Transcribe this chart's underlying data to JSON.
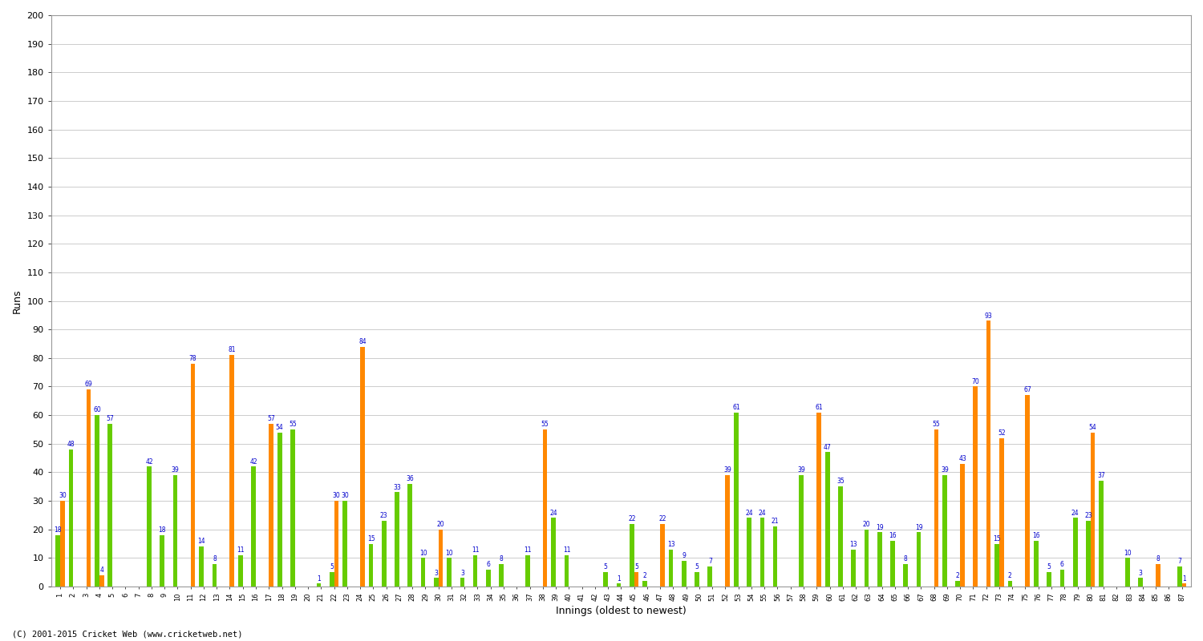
{
  "xlabel": "Innings (oldest to newest)",
  "ylabel": "Runs",
  "footer": "(C) 2001-2015 Cricket Web (www.cricketweb.net)",
  "ylim": [
    0,
    200
  ],
  "yticks": [
    0,
    10,
    20,
    30,
    40,
    50,
    60,
    70,
    80,
    90,
    100,
    110,
    120,
    130,
    140,
    150,
    160,
    170,
    180,
    190,
    200
  ],
  "bar_width": 0.35,
  "green_color": "#66CC00",
  "orange_color": "#FF8800",
  "label_color": "#0000CC",
  "innings": [
    {
      "x_label": "1",
      "green": 18,
      "orange": 30
    },
    {
      "x_label": "2",
      "green": 48,
      "orange": 0
    },
    {
      "x_label": "3",
      "green": 0,
      "orange": 69
    },
    {
      "x_label": "4",
      "green": 60,
      "orange": 4
    },
    {
      "x_label": "5",
      "green": 57,
      "orange": 0
    },
    {
      "x_label": "6",
      "green": 0,
      "orange": 0
    },
    {
      "x_label": "7",
      "green": 0,
      "orange": 0
    },
    {
      "x_label": "8",
      "green": 42,
      "orange": 0
    },
    {
      "x_label": "9",
      "green": 18,
      "orange": 0
    },
    {
      "x_label": "10",
      "green": 39,
      "orange": 0
    },
    {
      "x_label": "11",
      "green": 0,
      "orange": 78
    },
    {
      "x_label": "12",
      "green": 14,
      "orange": 0
    },
    {
      "x_label": "13",
      "green": 8,
      "orange": 0
    },
    {
      "x_label": "14",
      "green": 0,
      "orange": 81
    },
    {
      "x_label": "15",
      "green": 11,
      "orange": 0
    },
    {
      "x_label": "16",
      "green": 42,
      "orange": 0
    },
    {
      "x_label": "17",
      "green": 0,
      "orange": 57
    },
    {
      "x_label": "18",
      "green": 54,
      "orange": 0
    },
    {
      "x_label": "19",
      "green": 55,
      "orange": 0
    },
    {
      "x_label": "20",
      "green": 0,
      "orange": 0
    },
    {
      "x_label": "21",
      "green": 1,
      "orange": 0
    },
    {
      "x_label": "22",
      "green": 5,
      "orange": 30
    },
    {
      "x_label": "23",
      "green": 30,
      "orange": 0
    },
    {
      "x_label": "24",
      "green": 0,
      "orange": 84
    },
    {
      "x_label": "25",
      "green": 15,
      "orange": 0
    },
    {
      "x_label": "26",
      "green": 23,
      "orange": 0
    },
    {
      "x_label": "27",
      "green": 33,
      "orange": 0
    },
    {
      "x_label": "28",
      "green": 36,
      "orange": 0
    },
    {
      "x_label": "29",
      "green": 10,
      "orange": 0
    },
    {
      "x_label": "30",
      "green": 3,
      "orange": 20
    },
    {
      "x_label": "31",
      "green": 10,
      "orange": 0
    },
    {
      "x_label": "32",
      "green": 3,
      "orange": 0
    },
    {
      "x_label": "33",
      "green": 11,
      "orange": 0
    },
    {
      "x_label": "34",
      "green": 6,
      "orange": 0
    },
    {
      "x_label": "35",
      "green": 8,
      "orange": 0
    },
    {
      "x_label": "36",
      "green": 0,
      "orange": 0
    },
    {
      "x_label": "37",
      "green": 11,
      "orange": 0
    },
    {
      "x_label": "38",
      "green": 0,
      "orange": 55
    },
    {
      "x_label": "39",
      "green": 24,
      "orange": 0
    },
    {
      "x_label": "40",
      "green": 11,
      "orange": 0
    },
    {
      "x_label": "41",
      "green": 0,
      "orange": 0
    },
    {
      "x_label": "42",
      "green": 0,
      "orange": 0
    },
    {
      "x_label": "43",
      "green": 5,
      "orange": 0
    },
    {
      "x_label": "44",
      "green": 1,
      "orange": 0
    },
    {
      "x_label": "45",
      "green": 22,
      "orange": 5
    },
    {
      "x_label": "46",
      "green": 2,
      "orange": 0
    },
    {
      "x_label": "47",
      "green": 0,
      "orange": 22
    },
    {
      "x_label": "48",
      "green": 13,
      "orange": 0
    },
    {
      "x_label": "49",
      "green": 9,
      "orange": 0
    },
    {
      "x_label": "50",
      "green": 5,
      "orange": 0
    },
    {
      "x_label": "51",
      "green": 7,
      "orange": 0
    },
    {
      "x_label": "52",
      "green": 0,
      "orange": 39
    },
    {
      "x_label": "53",
      "green": 61,
      "orange": 0
    },
    {
      "x_label": "54",
      "green": 24,
      "orange": 0
    },
    {
      "x_label": "55",
      "green": 24,
      "orange": 0
    },
    {
      "x_label": "56",
      "green": 21,
      "orange": 0
    },
    {
      "x_label": "57",
      "green": 0,
      "orange": 0
    },
    {
      "x_label": "58",
      "green": 39,
      "orange": 0
    },
    {
      "x_label": "59",
      "green": 0,
      "orange": 61
    },
    {
      "x_label": "60",
      "green": 47,
      "orange": 0
    },
    {
      "x_label": "61",
      "green": 35,
      "orange": 0
    },
    {
      "x_label": "62",
      "green": 13,
      "orange": 0
    },
    {
      "x_label": "63",
      "green": 20,
      "orange": 0
    },
    {
      "x_label": "64",
      "green": 19,
      "orange": 0
    },
    {
      "x_label": "65",
      "green": 16,
      "orange": 0
    },
    {
      "x_label": "66",
      "green": 8,
      "orange": 0
    },
    {
      "x_label": "67",
      "green": 19,
      "orange": 0
    },
    {
      "x_label": "68",
      "green": 0,
      "orange": 55
    },
    {
      "x_label": "69",
      "green": 39,
      "orange": 0
    },
    {
      "x_label": "70",
      "green": 2,
      "orange": 43
    },
    {
      "x_label": "71",
      "green": 0,
      "orange": 70
    },
    {
      "x_label": "72",
      "green": 0,
      "orange": 93
    },
    {
      "x_label": "73",
      "green": 15,
      "orange": 52
    },
    {
      "x_label": "74",
      "green": 2,
      "orange": 0
    },
    {
      "x_label": "75",
      "green": 0,
      "orange": 67
    },
    {
      "x_label": "76",
      "green": 16,
      "orange": 0
    },
    {
      "x_label": "77",
      "green": 5,
      "orange": 0
    },
    {
      "x_label": "78",
      "green": 6,
      "orange": 0
    },
    {
      "x_label": "79",
      "green": 24,
      "orange": 0
    },
    {
      "x_label": "80",
      "green": 23,
      "orange": 54
    },
    {
      "x_label": "81",
      "green": 37,
      "orange": 0
    },
    {
      "x_label": "82",
      "green": 0,
      "orange": 0
    },
    {
      "x_label": "83",
      "green": 10,
      "orange": 0
    },
    {
      "x_label": "84",
      "green": 3,
      "orange": 0
    },
    {
      "x_label": "85",
      "green": 0,
      "orange": 8
    },
    {
      "x_label": "86",
      "green": 0,
      "orange": 0
    },
    {
      "x_label": "87",
      "green": 7,
      "orange": 1
    }
  ]
}
